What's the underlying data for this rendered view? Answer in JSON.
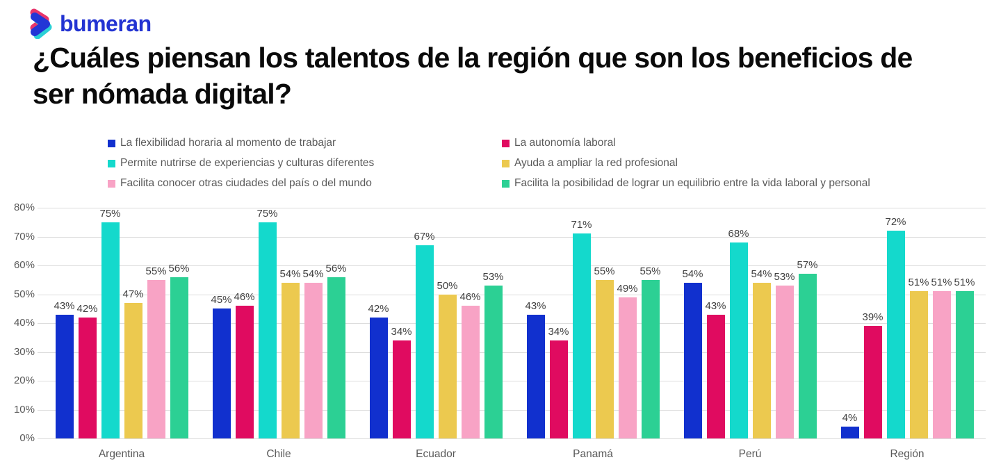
{
  "logo": {
    "text": "bumeran"
  },
  "title": "¿Cuáles piensan los talentos de la región que son los beneficios de ser nómada digital?",
  "chart_data": {
    "type": "bar",
    "title": "¿Cuáles piensan los talentos de la región que son los beneficios de ser nómada digital?",
    "categories": [
      "Argentina",
      "Chile",
      "Ecuador",
      "Panamá",
      "Perú",
      "Región"
    ],
    "series": [
      {
        "name": "La flexibilidad horaria al momento de trabajar",
        "color": "#1130ce",
        "values": [
          43,
          45,
          42,
          43,
          54,
          4
        ]
      },
      {
        "name": "La autonomía laboral",
        "color": "#e00b60",
        "values": [
          42,
          46,
          34,
          34,
          43,
          39
        ]
      },
      {
        "name": "Permite nutrirse de experiencias y culturas diferentes",
        "color": "#14d9cc",
        "values": [
          75,
          75,
          67,
          71,
          68,
          72
        ]
      },
      {
        "name": "Ayuda a ampliar la red profesional",
        "color": "#ecc94f",
        "values": [
          47,
          54,
          50,
          55,
          54,
          51
        ]
      },
      {
        "name": "Facilita conocer otras ciudades del país o del mundo",
        "color": "#f8a3c5",
        "values": [
          55,
          54,
          46,
          49,
          53,
          51
        ]
      },
      {
        "name": "Facilita la posibilidad de lograr un equilibrio entre la vida laboral y personal",
        "color": "#2cd094",
        "values": [
          56,
          56,
          53,
          55,
          57,
          51
        ]
      }
    ],
    "xlabel": "",
    "ylabel": "",
    "ylim": [
      0,
      80
    ],
    "yticks": [
      "0%",
      "10%",
      "20%",
      "30%",
      "40%",
      "50%",
      "60%",
      "70%",
      "80%"
    ],
    "ytick_values": [
      0,
      10,
      20,
      30,
      40,
      50,
      60,
      70,
      80
    ],
    "value_suffix": "%",
    "grid": true,
    "legend_position": "top",
    "colors": {
      "grid": "#dcdcdc",
      "axis_text": "#595959",
      "value_label_text": "#404040",
      "title_text": "#0a0a0a",
      "logo_blue": "#2233d2",
      "logo_chevron_pink": "#e8356b",
      "logo_chevron_cyan": "#2bd0d6",
      "logo_chevron_blue": "#2336d6"
    }
  }
}
